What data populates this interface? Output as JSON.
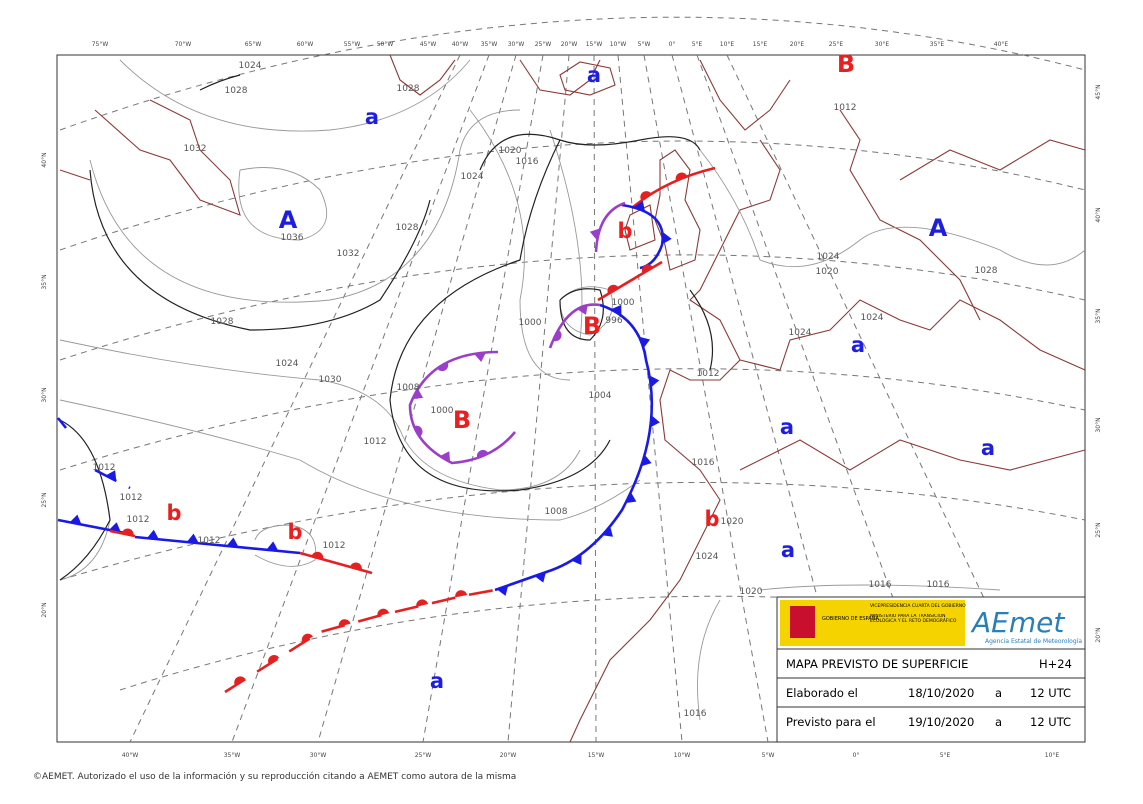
{
  "map": {
    "lon_top": [
      "75°W",
      "70°W",
      "65°W",
      "60°W",
      "55°W",
      "50°W",
      "45°W",
      "40°W",
      "35°W",
      "30°W",
      "25°W",
      "20°W",
      "15°W",
      "10°W",
      "5°W",
      "0°",
      "5°E",
      "10°E",
      "15°E",
      "20°E",
      "25°E",
      "30°E",
      "35°E",
      "40°E"
    ],
    "lon_bottom": [
      "40°W",
      "35°W",
      "30°W",
      "25°W",
      "20°W",
      "15°W",
      "10°W",
      "5°W",
      "0°",
      "5°E",
      "10°E"
    ],
    "lat_left": [
      "40°N",
      "35°N",
      "30°N",
      "25°N",
      "20°N"
    ],
    "lat_right": [
      "45°N",
      "40°N",
      "35°N",
      "30°N",
      "25°N",
      "20°N"
    ],
    "high_color": "#1e1ee0",
    "low_color": "#e82020",
    "pressure_centers": [
      {
        "label": "A",
        "type": "high"
      },
      {
        "label": "a",
        "type": "high"
      },
      {
        "label": "a",
        "type": "high"
      },
      {
        "label": "B",
        "type": "low"
      },
      {
        "label": "A",
        "type": "high"
      },
      {
        "label": "b",
        "type": "low"
      },
      {
        "label": "B",
        "type": "low"
      },
      {
        "label": "a",
        "type": "high"
      },
      {
        "label": "B",
        "type": "low"
      },
      {
        "label": "a",
        "type": "high"
      },
      {
        "label": "a",
        "type": "high"
      },
      {
        "label": "b",
        "type": "low"
      },
      {
        "label": "b",
        "type": "low"
      },
      {
        "label": "b",
        "type": "low"
      },
      {
        "label": "a",
        "type": "high"
      },
      {
        "label": "a",
        "type": "high"
      }
    ],
    "isobar_labels": [
      "1028",
      "1024",
      "1028",
      "1032",
      "1036",
      "1032",
      "1028",
      "1028",
      "1024",
      "1030",
      "1012",
      "1000",
      "996",
      "1000",
      "1020",
      "1016",
      "1024",
      "1008",
      "1000",
      "1004",
      "1012",
      "1016",
      "1008",
      "1012",
      "1012",
      "1012",
      "1012",
      "1012",
      "1020",
      "1024",
      "1020",
      "1016",
      "1016",
      "1016",
      "1020",
      "1024",
      "1024",
      "1024",
      "1012",
      "1028"
    ]
  },
  "legend": {
    "gov": "GOBIERNO DE ESPAÑA",
    "vice": "VICEPRESIDENCIA CUARTA DEL GOBIERNO",
    "ministry": "MINISTERIO PARA LA TRANSICIÓN ECOLÓGICA Y EL RETO DEMOGRÁFICO",
    "logo": "AEmet",
    "agency": "Agencia Estatal de Meteorología",
    "title": "MAPA PREVISTO DE SUPERFICIE",
    "horizon": "H+24",
    "made_label": "Elaborado el",
    "made_date": "18/10/2020",
    "made_a": "a",
    "made_time": "12 UTC",
    "valid_label": "Previsto para el",
    "valid_date": "19/10/2020",
    "valid_a": "a",
    "valid_time": "12 UTC"
  },
  "footer": "©AEMET. Autorizado el uso de la información y su reproducción citando a AEMET como autora de la misma"
}
